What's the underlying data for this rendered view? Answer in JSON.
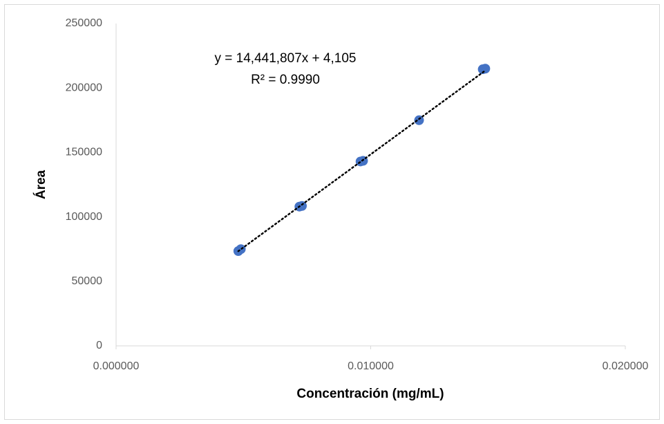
{
  "chart_data": {
    "type": "scatter",
    "x_label": "Concentración (mg/mL)",
    "y_label": "Área",
    "series": [
      {
        "name": "Área",
        "color": "#4472c4",
        "x": [
          0.0048,
          0.0049,
          0.0072,
          0.0073,
          0.0096,
          0.0097,
          0.0119,
          0.0144,
          0.0145
        ],
        "values": [
          73500,
          75000,
          108000,
          108500,
          143000,
          143500,
          175000,
          214500,
          215000
        ]
      }
    ],
    "trendline": {
      "slope": 14441807,
      "intercept": 4105,
      "color": "#000000",
      "equation": "y = 14,441,807x + 4,105",
      "r2": "R² = 0.9990"
    },
    "xlim": [
      0,
      0.02
    ],
    "xticks": [
      {
        "value": 0,
        "label": "0.000000"
      },
      {
        "value": 0.01,
        "label": "0.010000"
      },
      {
        "value": 0.02,
        "label": "0.020000"
      }
    ],
    "ylim": [
      0,
      250000
    ],
    "yticks": [
      0,
      50000,
      100000,
      150000,
      200000,
      250000
    ],
    "grid": false
  }
}
